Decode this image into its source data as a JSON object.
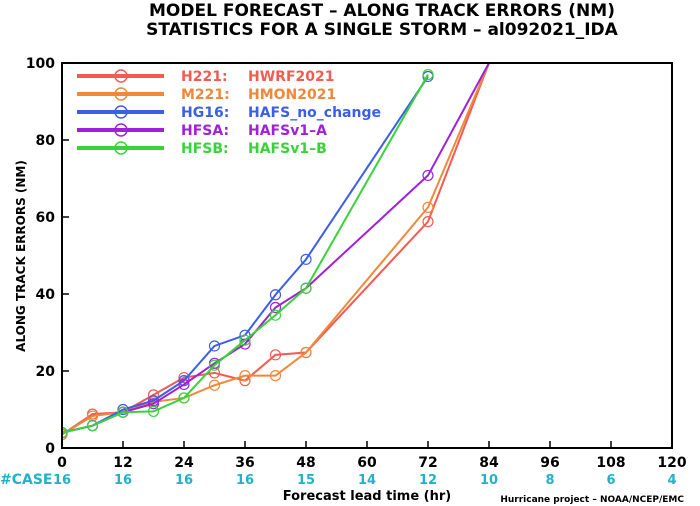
{
  "title_line1": "MODEL FORECAST – ALONG TRACK ERRORS (NM)",
  "title_line2": "STATISTICS FOR A SINGLE STORM – al092021_IDA",
  "credit": "Hurricane project – NOAA/NCEP/EMC",
  "case_label": "#CASE",
  "colors": {
    "case_text": "#20b2c8",
    "axis": "#000000",
    "credit": "#000000"
  },
  "chart_data": {
    "type": "line",
    "xlabel": "Forecast lead time (hr)",
    "ylabel": "ALONG TRACK ERRORS (NM)",
    "xlim": [
      0,
      120
    ],
    "ylim": [
      0,
      100
    ],
    "xticks": [
      "0",
      "12",
      "24",
      "36",
      "48",
      "60",
      "72",
      "84",
      "96",
      "108",
      "120"
    ],
    "yticks": [
      "0",
      "20",
      "40",
      "60",
      "80",
      "100"
    ],
    "case_counts": [
      "16",
      "16",
      "16",
      "16",
      "15",
      "14",
      "12",
      "10",
      "8",
      "6",
      "4"
    ],
    "grid": false,
    "legend_position": "top-left",
    "series": [
      {
        "label": "H221:",
        "model": "HWRF2021",
        "color": "#f25a52",
        "x": [
          0,
          6,
          12,
          18,
          24,
          30,
          36,
          42,
          48,
          72,
          84
        ],
        "y": [
          3.5,
          8.8,
          9.3,
          13.8,
          18.3,
          19.5,
          17.5,
          24.2,
          24.8,
          58.8,
          100
        ]
      },
      {
        "label": "M221:",
        "model": "HMON2021",
        "color": "#f0883a",
        "x": [
          0,
          6,
          12,
          18,
          24,
          30,
          36,
          42,
          48,
          72,
          84
        ],
        "y": [
          3.5,
          8.3,
          9.3,
          12.0,
          13.0,
          16.3,
          18.8,
          18.8,
          24.8,
          62.5,
          100
        ]
      },
      {
        "label": "HG16:",
        "model": "HAFS_no_change",
        "color": "#3a5fe6",
        "x": [
          0,
          6,
          12,
          18,
          24,
          30,
          36,
          42,
          48,
          72
        ],
        "y": [
          4.0,
          5.8,
          10.0,
          12.3,
          17.5,
          26.5,
          29.3,
          39.8,
          49.0,
          96.5
        ]
      },
      {
        "label": "HFSA:",
        "model": "HAFSv1–A",
        "color": "#a020d8",
        "x": [
          0,
          6,
          12,
          18,
          24,
          30,
          36,
          42,
          48,
          72,
          84
        ],
        "y": [
          4.0,
          5.8,
          9.3,
          11.5,
          16.5,
          22.0,
          27.0,
          36.5,
          41.5,
          70.8,
          100
        ]
      },
      {
        "label": "HFSB:",
        "model": "HAFSv1–B",
        "color": "#3ad23a",
        "x": [
          0,
          6,
          12,
          18,
          24,
          30,
          36,
          42,
          48,
          72
        ],
        "y": [
          4.0,
          5.8,
          9.3,
          9.5,
          13.0,
          21.5,
          28.0,
          34.5,
          41.5,
          97.0
        ]
      }
    ]
  }
}
